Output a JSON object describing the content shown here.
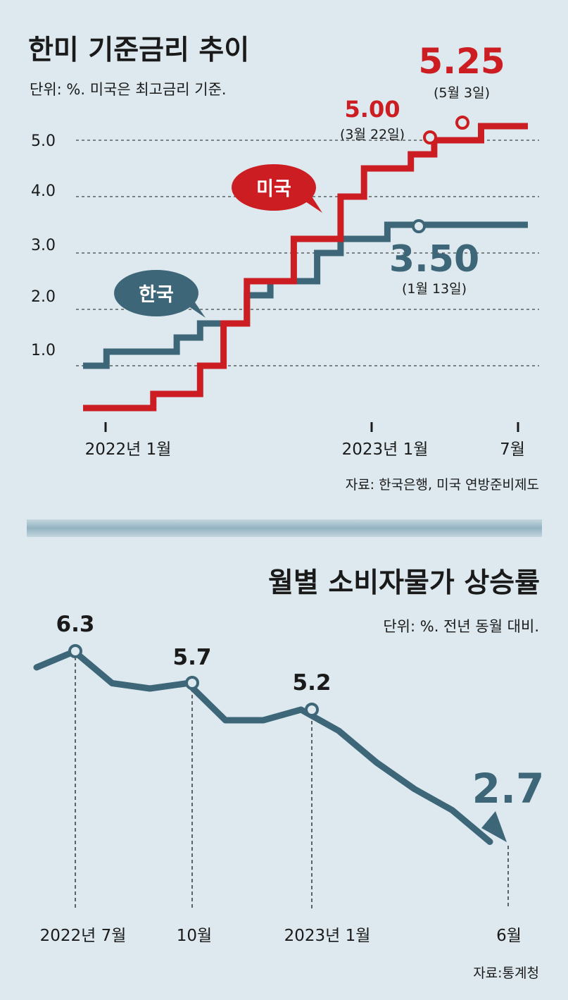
{
  "colors": {
    "background": "#dde9ee",
    "us": "#cc1d22",
    "korea": "#3d6678",
    "cpi": "#3d6678",
    "text": "#1a1a1a",
    "divider_band": "#a9c3ce"
  },
  "top_chart": {
    "title": "한미 기준금리 추이",
    "unit_note": "단위: %. 미국은 최고금리 기준.",
    "source": "자료: 한국은행, 미국 연방준비제도",
    "y_ticks": [
      "5.0",
      "4.0",
      "3.0",
      "2.0",
      "1.0"
    ],
    "x_ticks": [
      "2022년 1월",
      "2023년 1월",
      "7월"
    ],
    "us_bubble": "미국",
    "korea_bubble": "한국",
    "callouts": {
      "us_500_value": "5.00",
      "us_500_date": "(3월 22일)",
      "us_525_value": "5.25",
      "us_525_date": "(5월 3일)",
      "kr_350_value": "3.50",
      "kr_350_date": "(1월 13일)"
    }
  },
  "bottom_chart": {
    "title": "월별 소비자물가 상승률",
    "unit_note": "단위: %. 전년 동월 대비.",
    "source": "자료:통계청",
    "x_ticks": [
      "2022년 7월",
      "10월",
      "2023년 1월",
      "6월"
    ],
    "labels": [
      "6.3",
      "5.7",
      "5.2",
      "2.7"
    ]
  },
  "chart_data": [
    {
      "type": "line",
      "title": "한미 기준금리 추이",
      "ylim": [
        0,
        5.5
      ],
      "x_range": [
        "2021-12",
        "2023-07"
      ],
      "series": [
        {
          "name": "미국",
          "step": true,
          "points": [
            [
              "2021-12",
              0.25
            ],
            [
              "2022-03",
              0.5
            ],
            [
              "2022-05",
              1.0
            ],
            [
              "2022-06",
              1.75
            ],
            [
              "2022-07",
              2.5
            ],
            [
              "2022-09",
              3.25
            ],
            [
              "2022-11",
              4.0
            ],
            [
              "2022-12",
              4.5
            ],
            [
              "2023-02",
              4.75
            ],
            [
              "2023-03",
              5.0
            ],
            [
              "2023-05",
              5.25
            ],
            [
              "2023-07",
              5.25
            ]
          ]
        },
        {
          "name": "한국",
          "step": true,
          "points": [
            [
              "2021-12",
              1.0
            ],
            [
              "2022-01",
              1.25
            ],
            [
              "2022-04",
              1.5
            ],
            [
              "2022-05",
              1.75
            ],
            [
              "2022-07",
              2.25
            ],
            [
              "2022-08",
              2.5
            ],
            [
              "2022-10",
              3.0
            ],
            [
              "2022-11",
              3.25
            ],
            [
              "2023-01",
              3.5
            ],
            [
              "2023-07",
              3.5
            ]
          ]
        }
      ]
    },
    {
      "type": "line",
      "title": "월별 소비자물가 상승률",
      "ylim": [
        2.5,
        6.5
      ],
      "x_range": [
        "2022-06",
        "2023-06"
      ],
      "series": [
        {
          "name": "",
          "points": [
            [
              "2022-06",
              6.0
            ],
            [
              "2022-07",
              6.3
            ],
            [
              "2022-08",
              5.7
            ],
            [
              "2022-09",
              5.6
            ],
            [
              "2022-10",
              5.7
            ],
            [
              "2022-11",
              5.0
            ],
            [
              "2022-12",
              5.0
            ],
            [
              "2023-01",
              5.2
            ],
            [
              "2023-02",
              4.8
            ],
            [
              "2023-03",
              4.2
            ],
            [
              "2023-04",
              3.7
            ],
            [
              "2023-05",
              3.3
            ],
            [
              "2023-06",
              2.7
            ]
          ]
        }
      ]
    }
  ]
}
